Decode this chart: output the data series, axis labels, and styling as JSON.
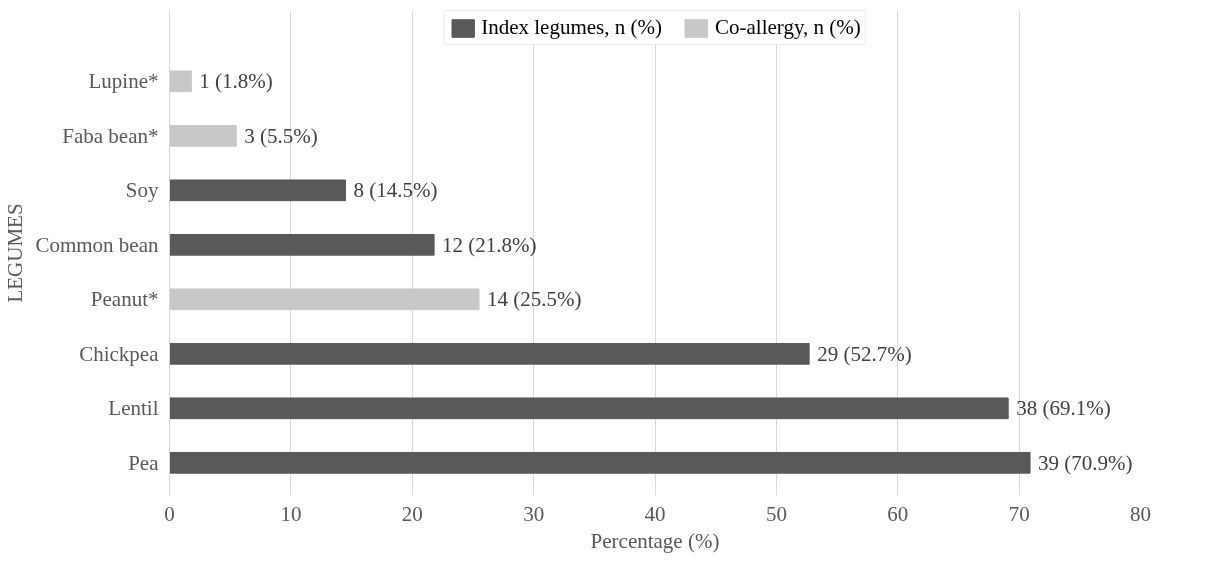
{
  "chart_data": {
    "type": "bar",
    "orientation": "horizontal",
    "stacked": true,
    "xlabel": "Percentage (%)",
    "ylabel": "LEGUMES",
    "categories": [
      "Lupine*",
      "Faba bean*",
      "Soy",
      "Common bean",
      "Peanut*",
      "Chickpea",
      "Lentil",
      "Pea"
    ],
    "series": [
      {
        "name": "Index legumes, n (%)",
        "color": "#595959",
        "values": [
          null,
          null,
          14.5,
          21.8,
          null,
          52.7,
          69.1,
          70.9
        ],
        "value_labels": [
          null,
          null,
          "8 (14.5%)",
          "12 (21.8%)",
          null,
          "29 (52.7%)",
          "38 (69.1%)",
          "39 (70.9%)"
        ]
      },
      {
        "name": "Co-allergy, n (%)",
        "color": "#c8c8c8",
        "values": [
          1.8,
          5.5,
          null,
          null,
          25.5,
          null,
          null,
          null
        ],
        "value_labels": [
          "1 (1.8%)",
          "3 (5.5%)",
          null,
          null,
          "14 (25.5%)",
          null,
          null,
          null
        ]
      }
    ],
    "xlim": [
      0,
      80
    ],
    "xticks": [
      0,
      10,
      20,
      30,
      40,
      50,
      60,
      70,
      80
    ],
    "grid": "x",
    "legend": "top"
  }
}
